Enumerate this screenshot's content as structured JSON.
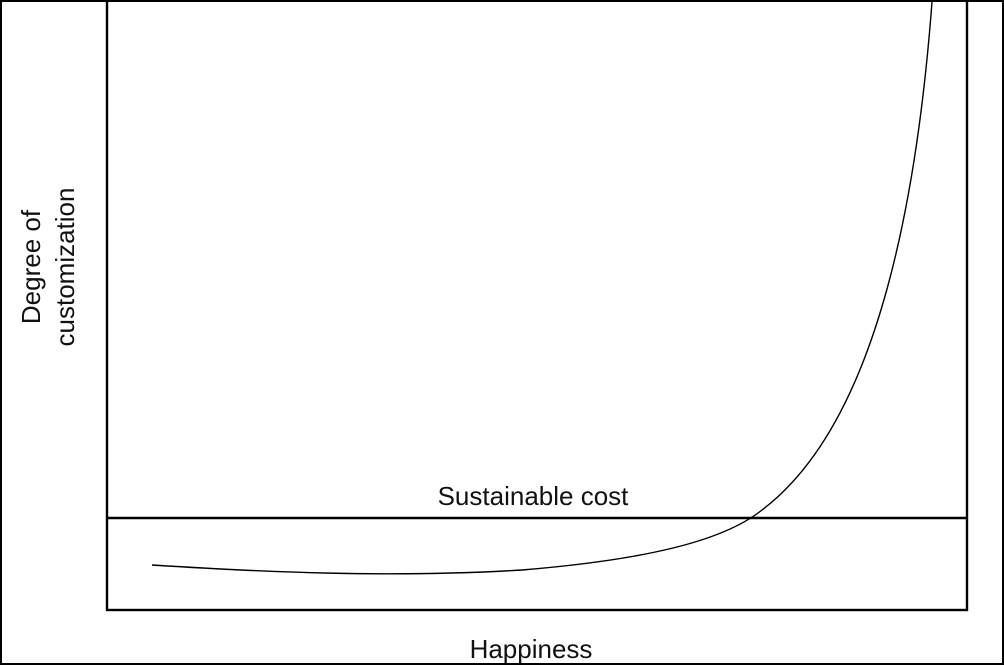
{
  "labels": {
    "ylabel_line1": "Degree of",
    "ylabel_line2": "customization",
    "xlabel": "Happiness",
    "threshold_label": "Sustainable cost"
  },
  "colors": {
    "line": "#000000",
    "background": "#ffffff"
  }
}
